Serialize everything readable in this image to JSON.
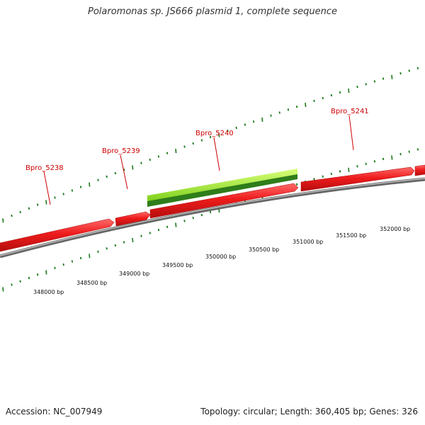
{
  "title": "Polaromonas sp. JS666 plasmid 1, complete sequence",
  "footer": {
    "accession": "Accession: NC_007949",
    "summary": "Topology: circular; Length: 360,405 bp; Genes: 326"
  },
  "genes": [
    {
      "id": "Bpro_5238",
      "strand": "+",
      "color": "#ee1c1c"
    },
    {
      "id": "Bpro_5239",
      "strand": "+",
      "color": "#ee1c1c"
    },
    {
      "id": "Bpro_5240",
      "strand": "+",
      "color": "#ee1c1c"
    },
    {
      "id": "Bpro_5241",
      "strand": "+",
      "color": "#ee1c1c"
    }
  ],
  "feature_bar": {
    "color_light": "#aaff33",
    "color_dark": "#2e8b1e"
  },
  "bp_ticks": [
    {
      "label": "348000 bp"
    },
    {
      "label": "348500 bp"
    },
    {
      "label": "349000 bp"
    },
    {
      "label": "349500 bp"
    },
    {
      "label": "350000 bp"
    },
    {
      "label": "350500 bp"
    },
    {
      "label": "351000 bp"
    },
    {
      "label": "351500 bp"
    },
    {
      "label": "352000 bp"
    }
  ],
  "colors": {
    "backbone": "#888888",
    "dotted_track": "#1a7a1a",
    "gene_label": "#cc0000"
  }
}
